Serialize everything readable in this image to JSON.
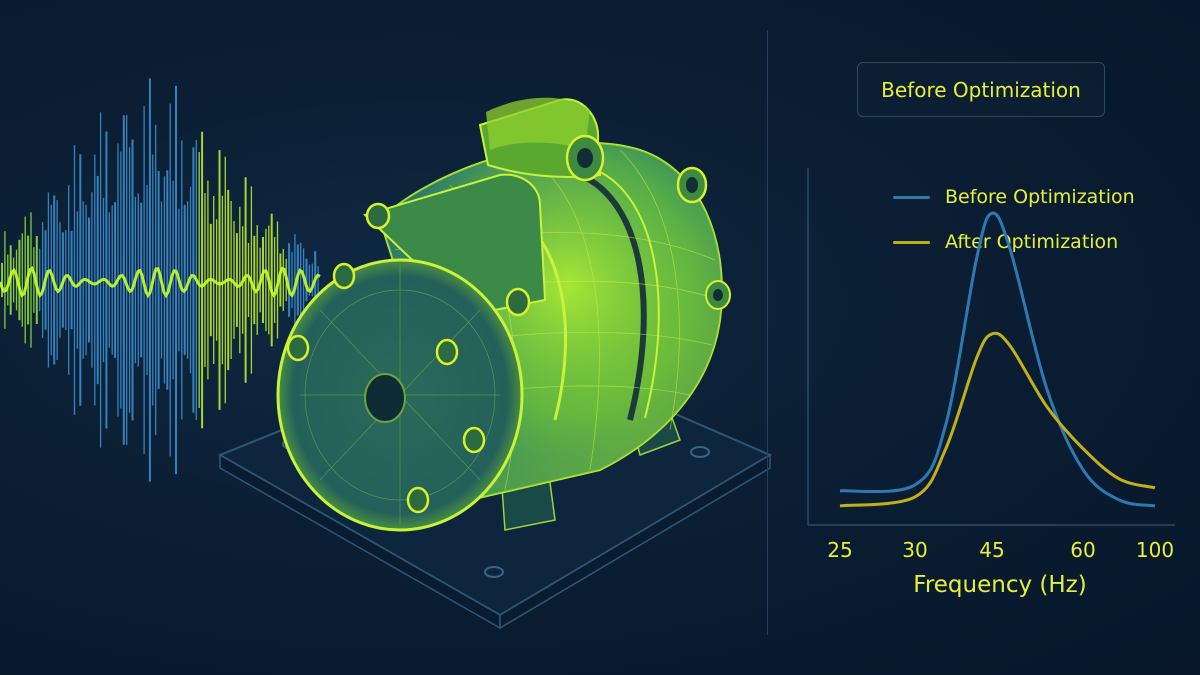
{
  "header": {
    "title": "Before Optimization"
  },
  "colors": {
    "before": "#2f79b3",
    "after": "#c2b01a",
    "accent": "#d6f22c",
    "text": "#e6ef3c"
  },
  "illustration": {
    "subject": "compressor-wireframe-icon",
    "waveform": "vibration-waveform-icon"
  },
  "chart_data": {
    "type": "line",
    "title": "",
    "xlabel": "Frequency (Hz)",
    "ylabel": "",
    "x_ticks": [
      "25",
      "30",
      "45",
      "60",
      "100"
    ],
    "legend_position": "top",
    "grid": false,
    "series": [
      {
        "name": "Before Optimization",
        "x": [
          "25",
          "30",
          "36",
          "42",
          "45",
          "48",
          "54",
          "60",
          "80",
          "100"
        ],
        "values": [
          0.08,
          0.1,
          0.3,
          0.85,
          1.0,
          0.88,
          0.42,
          0.15,
          0.05,
          0.03
        ]
      },
      {
        "name": "After Optimization",
        "x": [
          "25",
          "30",
          "36",
          "42",
          "45",
          "48",
          "54",
          "60",
          "80",
          "100"
        ],
        "values": [
          0.03,
          0.06,
          0.22,
          0.52,
          0.6,
          0.56,
          0.36,
          0.22,
          0.12,
          0.09
        ]
      }
    ],
    "ylim": [
      0,
      1.1
    ]
  }
}
